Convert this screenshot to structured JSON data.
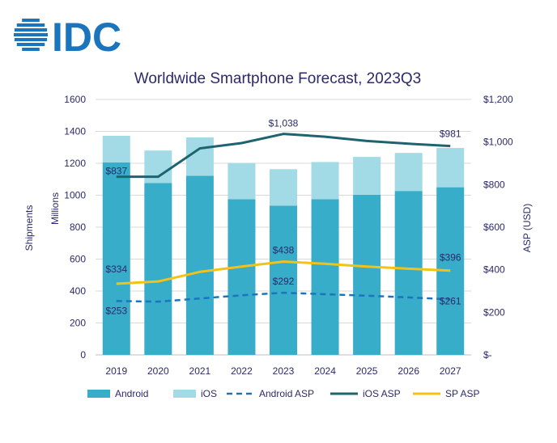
{
  "logo": {
    "text": "IDC",
    "color": "#1b75bc"
  },
  "chart_data": {
    "type": "bar",
    "title": "Worldwide Smartphone Forecast, 2023Q3",
    "categories": [
      "2019",
      "2020",
      "2021",
      "2022",
      "2023",
      "2024",
      "2025",
      "2026",
      "2027"
    ],
    "stacked": true,
    "series": [
      {
        "name": "Android",
        "kind": "bar",
        "axis": "left",
        "color": "#37adc9",
        "values": [
          1205,
          1077,
          1122,
          975,
          935,
          975,
          1003,
          1027,
          1050
        ]
      },
      {
        "name": "iOS",
        "kind": "bar",
        "axis": "left",
        "color": "#a2dbe5",
        "values": [
          167,
          203,
          240,
          227,
          228,
          233,
          237,
          238,
          246
        ]
      },
      {
        "name": "Android ASP",
        "kind": "line",
        "axis": "right",
        "color": "#1b75bc",
        "dash": true,
        "values": [
          253,
          250,
          265,
          280,
          292,
          285,
          278,
          270,
          261
        ]
      },
      {
        "name": "iOS ASP",
        "kind": "line",
        "axis": "right",
        "color": "#1e6470",
        "values": [
          837,
          837,
          970,
          995,
          1038,
          1025,
          1005,
          992,
          981
        ]
      },
      {
        "name": "SP ASP",
        "kind": "line",
        "axis": "right",
        "color": "#f2c316",
        "values": [
          334,
          345,
          390,
          415,
          438,
          428,
          415,
          405,
          396
        ]
      }
    ],
    "data_labels": [
      {
        "series": "iOS ASP",
        "index": 0,
        "text": "$837"
      },
      {
        "series": "iOS ASP",
        "index": 4,
        "text": "$1,038"
      },
      {
        "series": "iOS ASP",
        "index": 8,
        "text": "$981"
      },
      {
        "series": "SP ASP",
        "index": 0,
        "text": "$334"
      },
      {
        "series": "SP ASP",
        "index": 4,
        "text": "$438"
      },
      {
        "series": "SP ASP",
        "index": 8,
        "text": "$396"
      },
      {
        "series": "Android ASP",
        "index": 0,
        "text": "$253"
      },
      {
        "series": "Android ASP",
        "index": 4,
        "text": "$292"
      },
      {
        "series": "Android ASP",
        "index": 8,
        "text": "$261"
      }
    ],
    "y_left": {
      "label_outer": "Shipments",
      "label_inner": "Millions",
      "ylim": [
        0,
        1600
      ],
      "ticks": [
        0,
        200,
        400,
        600,
        800,
        1000,
        1200,
        1400,
        1600
      ],
      "tick_labels": [
        "0",
        "200",
        "400",
        "600",
        "800",
        "1000",
        "1200",
        "1400",
        "1600"
      ]
    },
    "y_right": {
      "label": "ASP (USD)",
      "ylim": [
        0,
        1200
      ],
      "ticks": [
        0,
        200,
        400,
        600,
        800,
        1000,
        1200
      ],
      "tick_labels": [
        "$-",
        "$200",
        "$400",
        "$600",
        "$800",
        "$1,000",
        "$1,200"
      ]
    },
    "grid": true,
    "legend_position": "bottom",
    "legend": [
      "Android",
      "iOS",
      "Android ASP",
      "iOS ASP",
      "SP ASP"
    ]
  }
}
